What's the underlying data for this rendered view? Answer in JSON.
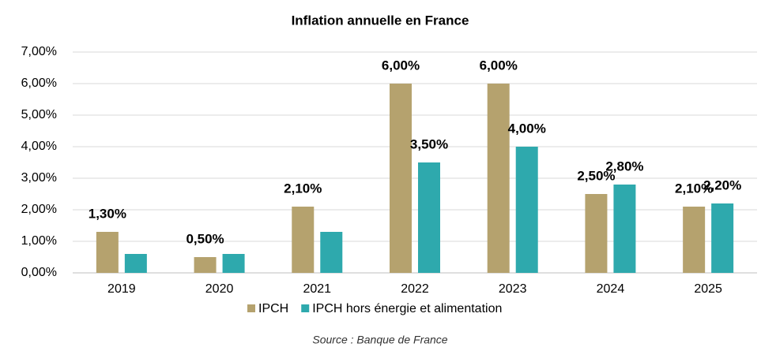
{
  "chart_data": {
    "type": "bar",
    "title": "Inflation annuelle en France",
    "source": "Source : Banque de France",
    "categories": [
      "2019",
      "2020",
      "2021",
      "2022",
      "2023",
      "2024",
      "2025"
    ],
    "series": [
      {
        "name": "IPCH",
        "color": "#b5a26e",
        "values": [
          1.3,
          0.5,
          2.1,
          6.0,
          6.0,
          2.5,
          2.1
        ],
        "value_labels": [
          "1,30%",
          "0,50%",
          "2,10%",
          "6,00%",
          "6,00%",
          "2,50%",
          "2,10%"
        ]
      },
      {
        "name": "IPCH hors énergie et alimentation",
        "color": "#2ea9ad",
        "values": [
          0.6,
          0.6,
          1.3,
          3.5,
          4.0,
          2.8,
          2.2
        ],
        "value_labels": [
          null,
          null,
          null,
          "3,50%",
          "4,00%",
          "2,80%",
          "2,20%"
        ]
      }
    ],
    "ylim": [
      0,
      7
    ],
    "yticks": [
      {
        "value": 0,
        "label": "0,00%"
      },
      {
        "value": 1,
        "label": "1,00%"
      },
      {
        "value": 2,
        "label": "2,00%"
      },
      {
        "value": 3,
        "label": "3,00%"
      },
      {
        "value": 4,
        "label": "4,00%"
      },
      {
        "value": 5,
        "label": "5,00%"
      },
      {
        "value": 6,
        "label": "6,00%"
      },
      {
        "value": 7,
        "label": "7,00%"
      }
    ],
    "grid": true
  }
}
